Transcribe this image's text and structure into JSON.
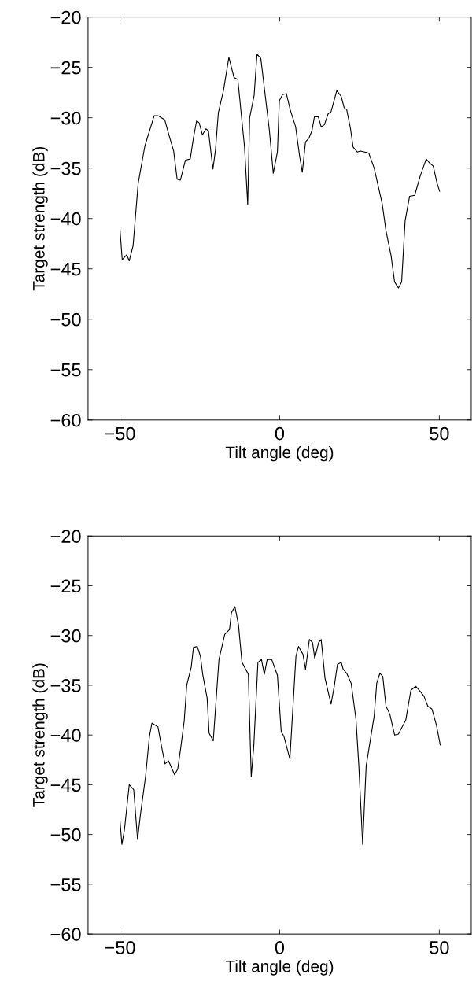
{
  "chart_data": [
    {
      "type": "line",
      "xlabel": "Tilt angle (deg)",
      "ylabel": "Target strength (dB)",
      "xlim": [
        -60,
        60
      ],
      "xticks": [
        -50,
        0,
        50
      ],
      "ylim": [
        -60,
        -20
      ],
      "yticks": [
        -60,
        -55,
        -50,
        -45,
        -40,
        -35,
        -30,
        -25,
        -20
      ],
      "grid": false,
      "marker": "none",
      "line_style": "solid",
      "series": [
        {
          "color": "#000000",
          "x": [
            -50.0,
            -49.3,
            -47.9,
            -47.1,
            -45.9,
            -44.3,
            -42.2,
            -39.3,
            -38.1,
            -36.0,
            -34.6,
            -33.2,
            -32.1,
            -31.1,
            -29.5,
            -28.0,
            -27.0,
            -26.0,
            -25.2,
            -24.2,
            -23.1,
            -22.3,
            -20.9,
            -20.1,
            -19.2,
            -17.6,
            -15.9,
            -14.3,
            -13.1,
            -11.0,
            -10.0,
            -9.4,
            -8.0,
            -7.1,
            -5.9,
            -3.2,
            -2.0,
            -0.7,
            -0.1,
            0.9,
            2.1,
            3.3,
            5.0,
            6.2,
            7.1,
            8.1,
            9.2,
            10.1,
            10.9,
            12.1,
            13.0,
            14.0,
            15.2,
            16.1,
            17.9,
            19.3,
            20.2,
            21.0,
            22.2,
            23.0,
            24.3,
            25.3,
            26.7,
            27.9,
            29.6,
            31.1,
            32.1,
            33.3,
            34.9,
            36.0,
            37.2,
            38.2,
            39.3,
            40.7,
            42.3,
            44.0,
            45.9,
            47.0,
            48.1,
            49.3,
            50.1
          ],
          "values": [
            -41.1,
            -44.1,
            -43.6,
            -44.2,
            -42.7,
            -36.5,
            -32.8,
            -29.8,
            -29.8,
            -30.2,
            -31.8,
            -33.3,
            -36.1,
            -36.2,
            -34.2,
            -34.1,
            -32.0,
            -30.3,
            -30.5,
            -31.7,
            -31.1,
            -31.3,
            -35.1,
            -33.2,
            -29.5,
            -27.3,
            -24.0,
            -26.0,
            -26.2,
            -32.9,
            -38.6,
            -30.0,
            -27.8,
            -23.7,
            -24.1,
            -31.3,
            -35.5,
            -33.4,
            -28.3,
            -27.7,
            -27.6,
            -29.2,
            -30.9,
            -33.7,
            -35.4,
            -32.4,
            -32.0,
            -31.3,
            -29.9,
            -29.9,
            -30.9,
            -30.7,
            -29.6,
            -29.4,
            -27.3,
            -27.9,
            -29.0,
            -29.2,
            -31.1,
            -32.9,
            -33.4,
            -33.3,
            -33.4,
            -33.5,
            -35.0,
            -37.1,
            -38.5,
            -41.2,
            -43.7,
            -46.3,
            -46.9,
            -46.3,
            -40.2,
            -37.8,
            -37.7,
            -35.8,
            -34.1,
            -34.5,
            -34.8,
            -36.5,
            -37.3
          ]
        }
      ]
    },
    {
      "type": "line",
      "xlabel": "Tilt angle (deg)",
      "ylabel": "Target strength (dB)",
      "xlim": [
        -60,
        60
      ],
      "xticks": [
        -50,
        0,
        50
      ],
      "ylim": [
        -60,
        -20
      ],
      "yticks": [
        -60,
        -55,
        -50,
        -45,
        -40,
        -35,
        -30,
        -25,
        -20
      ],
      "grid": false,
      "marker": "none",
      "line_style": "solid",
      "series": [
        {
          "color": "#000000",
          "x": [
            -50.0,
            -49.4,
            -48.6,
            -47.1,
            -45.7,
            -44.5,
            -43.6,
            -42.0,
            -40.8,
            -40.0,
            -38.1,
            -36.9,
            -35.9,
            -34.8,
            -32.9,
            -31.9,
            -30.9,
            -29.9,
            -29.1,
            -27.7,
            -27.0,
            -25.8,
            -24.8,
            -24.1,
            -22.7,
            -22.1,
            -20.8,
            -19.0,
            -17.2,
            -15.7,
            -15.1,
            -14.0,
            -12.9,
            -11.8,
            -9.8,
            -8.9,
            -8.1,
            -6.8,
            -5.7,
            -4.8,
            -3.9,
            -2.5,
            -0.7,
            0.5,
            1.3,
            3.2,
            5.1,
            5.9,
            7.3,
            8.1,
            9.3,
            10.3,
            11.0,
            12.2,
            13.0,
            14.2,
            16.1,
            17.1,
            18.1,
            19.3,
            19.9,
            21.0,
            22.4,
            23.9,
            24.8,
            26.0,
            27.1,
            28.4,
            29.6,
            30.4,
            31.4,
            32.3,
            33.3,
            34.5,
            36.0,
            37.2,
            39.5,
            41.1,
            42.6,
            44.0,
            45.2,
            46.4,
            47.7,
            49.1,
            50.3
          ],
          "values": [
            -48.6,
            -51.0,
            -49.5,
            -45.0,
            -45.5,
            -50.5,
            -48.0,
            -44.2,
            -40.2,
            -38.8,
            -39.2,
            -41.3,
            -42.9,
            -42.6,
            -44.0,
            -43.4,
            -41.1,
            -38.6,
            -35.0,
            -33.2,
            -31.2,
            -31.1,
            -32.1,
            -33.9,
            -36.3,
            -39.8,
            -40.6,
            -32.4,
            -29.9,
            -29.4,
            -27.7,
            -27.1,
            -28.9,
            -32.7,
            -33.9,
            -44.2,
            -41.1,
            -32.7,
            -32.4,
            -33.9,
            -32.4,
            -32.4,
            -34.0,
            -39.7,
            -40.1,
            -42.4,
            -32.1,
            -31.1,
            -31.9,
            -33.4,
            -30.4,
            -30.7,
            -32.3,
            -30.7,
            -30.4,
            -34.3,
            -36.9,
            -35.1,
            -32.9,
            -32.7,
            -33.4,
            -33.8,
            -34.8,
            -38.4,
            -43.1,
            -51.0,
            -43.1,
            -40.5,
            -38.1,
            -34.8,
            -33.8,
            -34.1,
            -37.1,
            -37.9,
            -40.0,
            -39.9,
            -38.5,
            -35.5,
            -35.1,
            -35.6,
            -36.1,
            -37.1,
            -37.4,
            -39.0,
            -41.0
          ]
        }
      ]
    }
  ]
}
